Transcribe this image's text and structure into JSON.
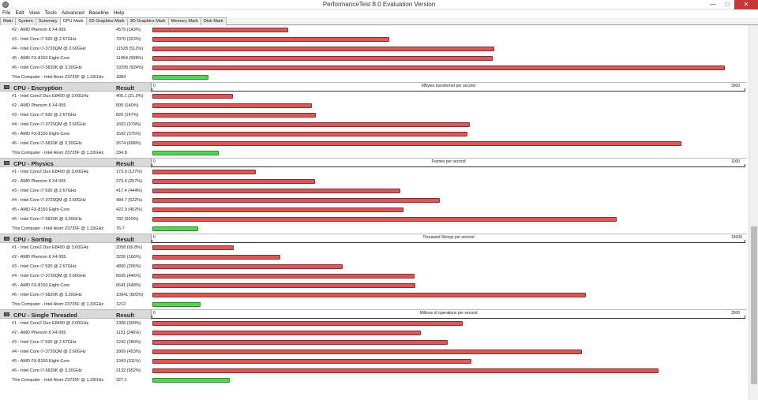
{
  "window": {
    "title": "PerformanceTest 8.0 Evaluation Version"
  },
  "menu": [
    "File",
    "Edit",
    "View",
    "Tests",
    "Advanced",
    "Baseline",
    "Help"
  ],
  "tabs": [
    {
      "label": "Main",
      "active": false
    },
    {
      "label": "System",
      "active": false
    },
    {
      "label": "Summary",
      "active": false
    },
    {
      "label": "CPU Mark",
      "active": true
    },
    {
      "label": "2D Graphics Mark",
      "active": false
    },
    {
      "label": "3D Graphics Mark",
      "active": false
    },
    {
      "label": "Memory Mark",
      "active": false
    },
    {
      "label": "Disk Mark",
      "active": false
    }
  ],
  "result_label": "Result",
  "colors": {
    "competitor_bar": "#d85b5b",
    "this_computer_bar": "#55d455",
    "close_button": "#c73737"
  },
  "partial_section": {
    "max": 20000,
    "rows": [
      {
        "name": "#2 - AMD Phenom II X4 955",
        "result": "4579 (143%)",
        "value": 4579
      },
      {
        "name": "#3 - Intel Core i7 920 @ 2.67GHz",
        "result": "7970 (323%)",
        "value": 7970
      },
      {
        "name": "#4 - Intel Core i7-3720QM @ 2.60GHz",
        "result": "11528 (512%)",
        "value": 11528
      },
      {
        "name": "#5 - AMD FX-8150 Eight-Core",
        "result": "11454 (508%)",
        "value": 11454
      },
      {
        "name": "#6 - Intel Core i7-5820K @ 3.30GHz",
        "result": "19295 (924%)",
        "value": 19295
      },
      {
        "name": "This Computer - Intel Atom Z3735F @ 1.33GHz",
        "result": "1884",
        "value": 1884,
        "this": true
      }
    ]
  },
  "sections": [
    {
      "title": "CPU - Encryption",
      "unit": "MBytes transferred per second",
      "min_label": "0",
      "max_label": "3000",
      "max": 3000,
      "rows": [
        {
          "name": "#1 - Intel Core2 Duo E8400 @ 3.00GHz",
          "result": "405.1 (21.0%)",
          "value": 405.1
        },
        {
          "name": "#2 - AMD Phenom II X4 955",
          "result": "805 (140%)",
          "value": 805
        },
        {
          "name": "#3 - Intel Core i7 920 @ 2.67GHz",
          "result": "826 (147%)",
          "value": 826
        },
        {
          "name": "#4 - Intel Core i7-3720QM @ 2.60GHz",
          "result": "1603 (379%)",
          "value": 1603
        },
        {
          "name": "#5 - AMD FX-8150 Eight-Core",
          "result": "1592 (375%)",
          "value": 1592
        },
        {
          "name": "#6 - Intel Core i7-5820K @ 3.30GHz",
          "result": "2674 (698%)",
          "value": 2674
        },
        {
          "name": "This Computer - Intel Atom Z3735F @ 1.33GHz",
          "result": "334.8",
          "value": 334.8,
          "this": true
        }
      ]
    },
    {
      "title": "CPU - Physics",
      "unit": "Frames per second",
      "min_label": "0",
      "max_label": "1000",
      "max": 1000,
      "rows": [
        {
          "name": "#1 - Intel Core2 Duo E8400 @ 3.00GHz",
          "result": "173.9 (127%)",
          "value": 173.9
        },
        {
          "name": "#2 - AMD Phenom II X4 955",
          "result": "273.4 (257%)",
          "value": 273.4
        },
        {
          "name": "#3 - Intel Core i7 920 @ 2.67GHz",
          "result": "417.4 (444%)",
          "value": 417.4
        },
        {
          "name": "#4 - Intel Core i7-3720QM @ 2.60GHz",
          "result": "484.7 (532%)",
          "value": 484.7
        },
        {
          "name": "#5 - AMD FX-8150 Eight-Core",
          "result": "422.9 (452%)",
          "value": 422.9
        },
        {
          "name": "#6 - Intel Core i7-5820K @ 3.30GHz",
          "result": "782 (920%)",
          "value": 782
        },
        {
          "name": "This Computer - Intel Atom Z3735F @ 1.33GHz",
          "result": "76.7",
          "value": 76.7,
          "this": true
        }
      ]
    },
    {
      "title": "CPU - Sorting",
      "unit": "Thousand Strings per second",
      "min_label": "0",
      "max_label": "15000",
      "max": 15000,
      "rows": [
        {
          "name": "#1 - Intel Core2 Duo E8400 @ 3.00GHz",
          "result": "2058 (69.8%)",
          "value": 2058
        },
        {
          "name": "#2 - AMD Phenom II X4 955",
          "result": "3226 (166%)",
          "value": 3226
        },
        {
          "name": "#3 - Intel Core i7 920 @ 2.67GHz",
          "result": "4800 (296%)",
          "value": 4800
        },
        {
          "name": "#4 - Intel Core i7-3720QM @ 2.60GHz",
          "result": "6625 (446%)",
          "value": 6625
        },
        {
          "name": "#5 - AMD FX-8150 Eight-Core",
          "result": "6641 (448%)",
          "value": 6641
        },
        {
          "name": "#6 - Intel Core i7-5820K @ 3.30GHz",
          "result": "10941 (803%)",
          "value": 10941
        },
        {
          "name": "This Computer - Intel Atom Z3735F @ 1.33GHz",
          "result": "1212",
          "value": 1212,
          "this": true
        }
      ]
    },
    {
      "title": "CPU - Single Threaded",
      "unit": "Millions of operations per second",
      "min_label": "0",
      "max_label": "2500",
      "max": 2500,
      "rows": [
        {
          "name": "#1 - Intel Core2 Duo E8400 @ 3.00GHz",
          "result": "1308 (300%)",
          "value": 1308
        },
        {
          "name": "#2 - AMD Phenom II X4 955",
          "result": "1131 (246%)",
          "value": 1131
        },
        {
          "name": "#3 - Intel Core i7 920 @ 2.67GHz",
          "result": "1242 (280%)",
          "value": 1242
        },
        {
          "name": "#4 - Intel Core i7-3720QM @ 2.60GHz",
          "result": "1809 (453%)",
          "value": 1809
        },
        {
          "name": "#5 - AMD FX-8150 Eight-Core",
          "result": "1343 (311%)",
          "value": 1343
        },
        {
          "name": "#6 - Intel Core i7-5820K @ 3.30GHz",
          "result": "2132 (552%)",
          "value": 2132
        },
        {
          "name": "This Computer - Intel Atom Z3735F @ 1.33GHz",
          "result": "327.1",
          "value": 327.1,
          "this": true
        }
      ]
    }
  ]
}
